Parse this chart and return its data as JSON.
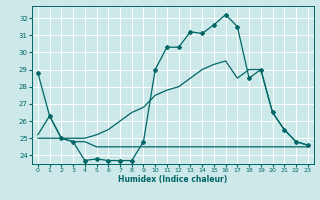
{
  "xlabel": "Humidex (Indice chaleur)",
  "bg_color": "#cce8e8",
  "grid_color": "#ffffff",
  "line_color": "#006666",
  "xlim": [
    -0.5,
    23.5
  ],
  "ylim": [
    23.5,
    32.7
  ],
  "yticks": [
    24,
    25,
    26,
    27,
    28,
    29,
    30,
    31,
    32
  ],
  "xticks": [
    0,
    1,
    2,
    3,
    4,
    5,
    6,
    7,
    8,
    9,
    10,
    11,
    12,
    13,
    14,
    15,
    16,
    17,
    18,
    19,
    20,
    21,
    22,
    23
  ],
  "line1_x": [
    0,
    1,
    2,
    3,
    4,
    5,
    6,
    7,
    8,
    9,
    10,
    11,
    12,
    13,
    14,
    15,
    16,
    17,
    18,
    19,
    20,
    21,
    22,
    23
  ],
  "line1_y": [
    28.8,
    26.3,
    25.0,
    24.8,
    23.7,
    23.8,
    23.7,
    23.7,
    23.7,
    24.8,
    29.0,
    30.3,
    30.3,
    31.2,
    31.1,
    31.6,
    32.2,
    31.5,
    28.5,
    29.0,
    26.5,
    25.5,
    24.8,
    24.6
  ],
  "line2_x": [
    0,
    1,
    2,
    3,
    4,
    5,
    6,
    7,
    8,
    9,
    10,
    11,
    12,
    13,
    14,
    15,
    16,
    17,
    18,
    19,
    20,
    21,
    22,
    23
  ],
  "line2_y": [
    25.0,
    25.0,
    25.0,
    24.8,
    24.8,
    24.5,
    24.5,
    24.5,
    24.5,
    24.5,
    24.5,
    24.5,
    24.5,
    24.5,
    24.5,
    24.5,
    24.5,
    24.5,
    24.5,
    24.5,
    24.5,
    24.5,
    24.5,
    24.5
  ],
  "line3_x": [
    0,
    1,
    2,
    3,
    4,
    5,
    6,
    7,
    8,
    9,
    10,
    11,
    12,
    13,
    14,
    15,
    16,
    17,
    18,
    19,
    20,
    21,
    22,
    23
  ],
  "line3_y": [
    25.2,
    26.3,
    25.0,
    25.0,
    25.0,
    25.2,
    25.5,
    26.0,
    26.5,
    26.8,
    27.5,
    27.8,
    28.0,
    28.5,
    29.0,
    29.3,
    29.5,
    28.5,
    29.0,
    29.0,
    26.5,
    25.5,
    24.8,
    24.6
  ]
}
